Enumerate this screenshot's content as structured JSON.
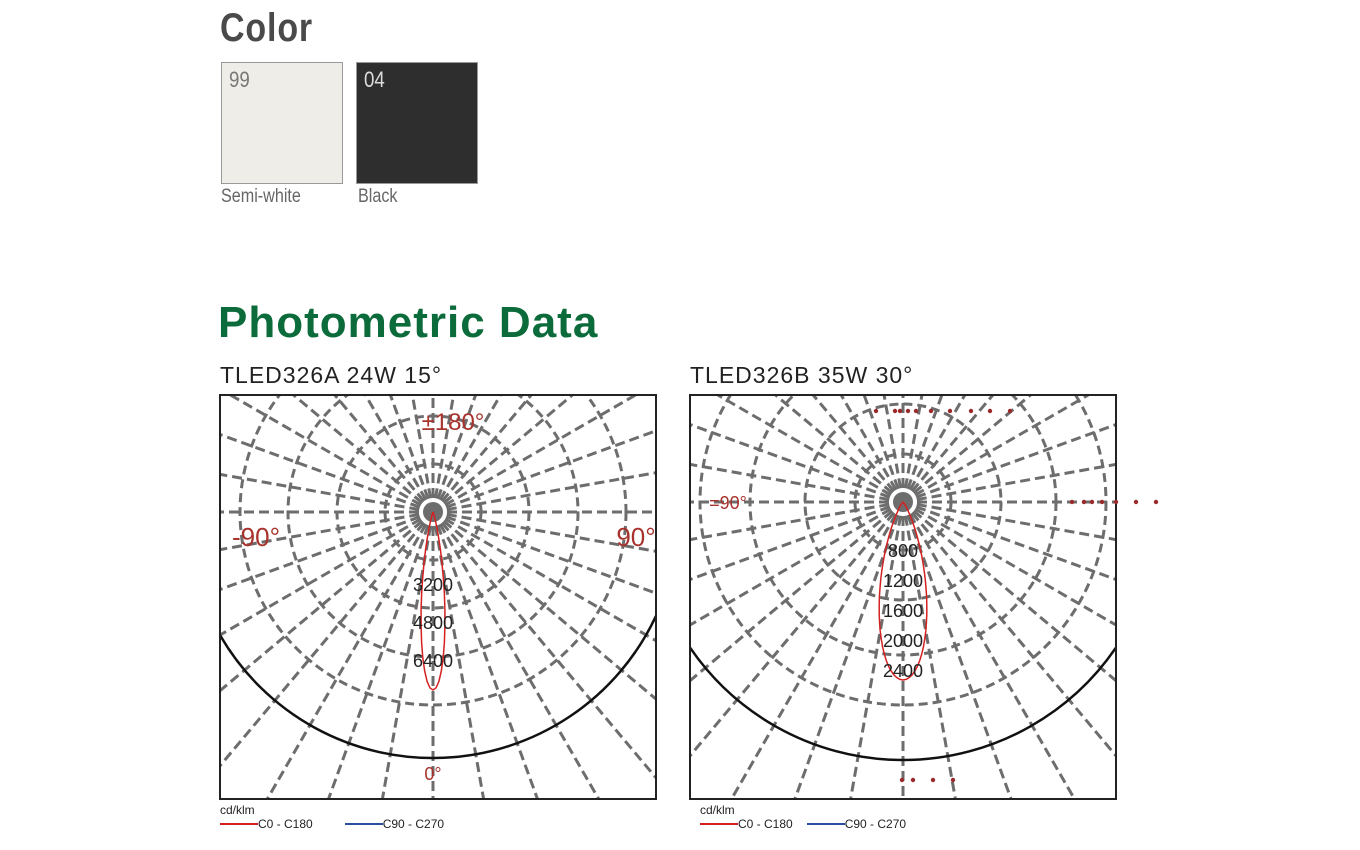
{
  "color_section": {
    "title": "Color",
    "swatches": [
      {
        "code": "99",
        "name": "Semi-white",
        "color": "#eeede8"
      },
      {
        "code": "04",
        "name": "Black",
        "color": "#2e2e2e"
      }
    ]
  },
  "photometric": {
    "title": "Photometric Data"
  },
  "chart_data": [
    {
      "type": "polar",
      "title": "TLED326A  24W 15°",
      "unit": "cd/klm",
      "angle_labels": {
        "top": "±180°",
        "left": "-90°",
        "right": "90°",
        "bottom": "0°"
      },
      "radial_tick_labels": [
        "3200",
        "4800",
        "6400"
      ],
      "radial_max": 6400,
      "series": [
        {
          "name": "C0 - C180",
          "color": "#d42020",
          "peak": 5900,
          "beam_angle": 15
        },
        {
          "name": "C90 - C270",
          "color": "#2a4fa0"
        }
      ]
    },
    {
      "type": "polar",
      "title": "TLED326B  35W 30°",
      "unit": "cd/klm",
      "angle_labels": {
        "left": "=90°"
      },
      "radial_tick_labels": [
        "800",
        "1200",
        "1600",
        "2000",
        "2400"
      ],
      "radial_max": 2400,
      "series": [
        {
          "name": "C0 - C180",
          "color": "#d42020",
          "peak": 2500,
          "beam_angle": 30
        },
        {
          "name": "C90 - C270",
          "color": "#2a4fa0"
        }
      ]
    }
  ]
}
